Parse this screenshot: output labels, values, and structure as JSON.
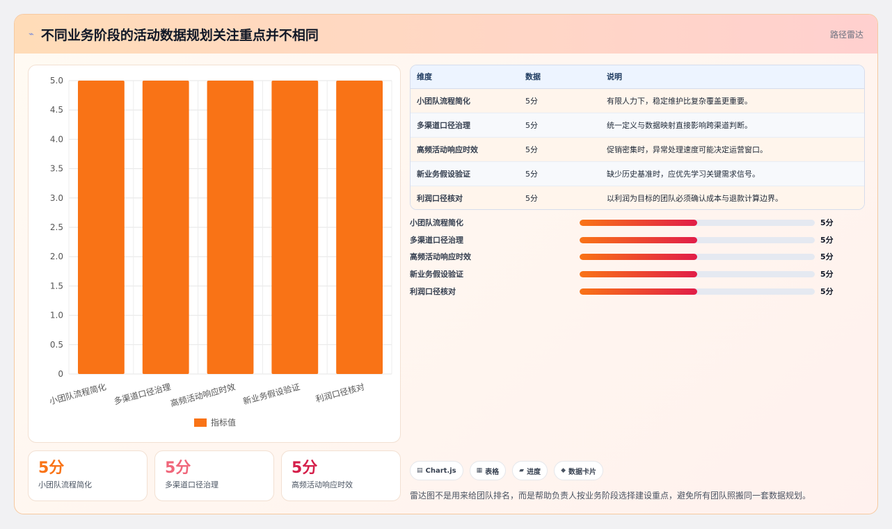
{
  "header": {
    "icon": "chart-spark-icon",
    "title": "不同业务阶段的活动数据规划关注重点并不相同",
    "tag": "路径雷达"
  },
  "chart_data": {
    "type": "bar",
    "categories": [
      "小团队流程简化",
      "多渠道口径治理",
      "高频活动响应时效",
      "新业务假设验证",
      "利润口径核对"
    ],
    "series": [
      {
        "name": "指标值",
        "values": [
          5,
          5,
          5,
          5,
          5
        ],
        "color": "#f97316"
      }
    ],
    "ylim": [
      0,
      5
    ],
    "yticks": [
      "0",
      "0.5",
      "1.0",
      "1.5",
      "2.0",
      "2.5",
      "3.0",
      "3.5",
      "4.0",
      "4.5",
      "5.0"
    ],
    "grid": true,
    "legend": "bottom"
  },
  "kpis": [
    {
      "value": "5分",
      "label": "小团队流程简化",
      "color": "#f97316"
    },
    {
      "value": "5分",
      "label": "多渠道口径治理",
      "color": "#f0667a"
    },
    {
      "value": "5分",
      "label": "高频活动响应时效",
      "color": "#d51f4a"
    }
  ],
  "table": {
    "headers": [
      "维度",
      "数据",
      "说明"
    ],
    "rows": [
      [
        "小团队流程简化",
        "5分",
        "有限人力下，稳定维护比复杂覆盖更重要。"
      ],
      [
        "多渠道口径治理",
        "5分",
        "统一定义与数据映射直接影响跨渠道判断。"
      ],
      [
        "高频活动响应时效",
        "5分",
        "促销密集时，异常处理速度可能决定运营窗口。"
      ],
      [
        "新业务假设验证",
        "5分",
        "缺少历史基准时，应优先学习关键需求信号。"
      ],
      [
        "利润口径核对",
        "5分",
        "以利润为目标的团队必须确认成本与退款计算边界。"
      ]
    ]
  },
  "progress": [
    {
      "label": "小团队流程简化",
      "value": "5分",
      "fill": 0.5
    },
    {
      "label": "多渠道口径治理",
      "value": "5分",
      "fill": 0.5
    },
    {
      "label": "高频活动响应时效",
      "value": "5分",
      "fill": 0.5
    },
    {
      "label": "新业务假设验证",
      "value": "5分",
      "fill": 0.5
    },
    {
      "label": "利润口径核对",
      "value": "5分",
      "fill": 0.5
    }
  ],
  "chips": [
    {
      "icon": "chart-icon",
      "glyph": "▤",
      "label": "Chart.js"
    },
    {
      "icon": "table-icon",
      "glyph": "▦",
      "label": "表格"
    },
    {
      "icon": "progress-icon",
      "glyph": "▰",
      "label": "进度"
    },
    {
      "icon": "card-icon",
      "glyph": "◆",
      "label": "数据卡片"
    }
  ],
  "footnote": "雷达图不是用来给团队排名，而是帮助负责人按业务阶段选择建设重点，避免所有团队照搬同一套数据规划。"
}
